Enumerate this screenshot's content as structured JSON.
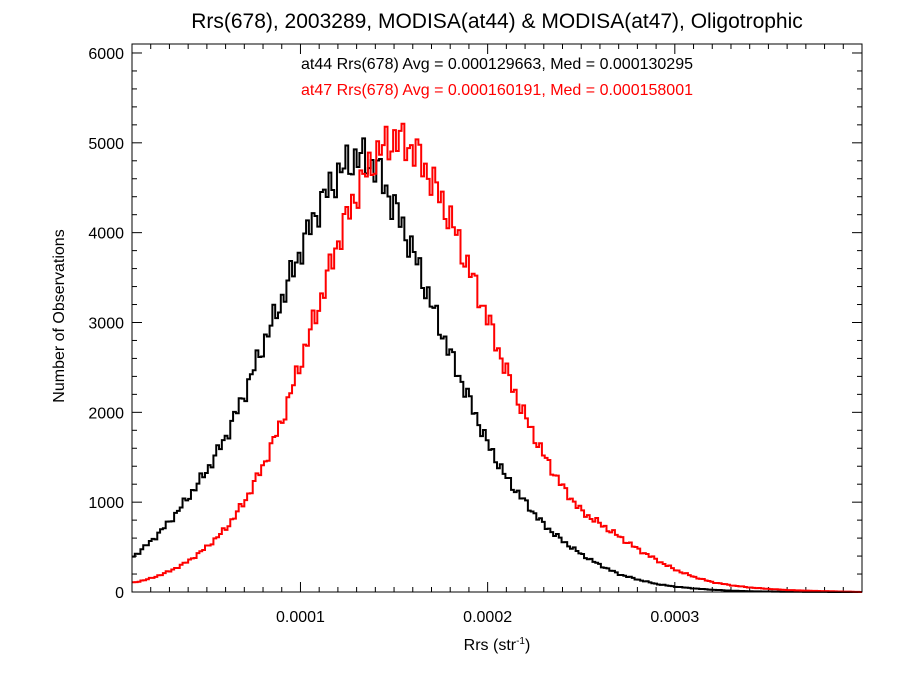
{
  "chart_data": {
    "type": "histogram-step",
    "title": "Rrs(678), 2003289, MODISA(at44) & MODISA(at47), Oligotrophic",
    "xlabel_main": "Rrs (str",
    "xlabel_sup": "-1",
    "xlabel_tail": ")",
    "ylabel": "Number of Observations",
    "xlim": [
      1e-05,
      0.0004
    ],
    "ylim": [
      0,
      6100
    ],
    "x_ticks": [
      {
        "value": 0.0001,
        "label": "0.0001"
      },
      {
        "value": 0.0002,
        "label": "0.0002"
      },
      {
        "value": 0.0003,
        "label": "0.0003"
      }
    ],
    "x_minor_step": 1e-05,
    "y_ticks": [
      {
        "value": 0,
        "label": "0"
      },
      {
        "value": 1000,
        "label": "1000"
      },
      {
        "value": 2000,
        "label": "2000"
      },
      {
        "value": 3000,
        "label": "3000"
      },
      {
        "value": 4000,
        "label": "4000"
      },
      {
        "value": 5000,
        "label": "5000"
      },
      {
        "value": 6000,
        "label": "6000"
      }
    ],
    "y_minor_step": 200,
    "bin_width": 1.5e-06,
    "annotations": [
      {
        "text": "at44 Rrs(678) Avg = 0.000129663, Med = 0.000130295",
        "color": "#000000"
      },
      {
        "text": "at47 Rrs(678) Avg = 0.000160191, Med = 0.000158001",
        "color": "#ff0000"
      }
    ],
    "series": [
      {
        "color": "#000000",
        "x": [
          1e-05,
          2e-05,
          3e-05,
          4e-05,
          5e-05,
          6e-05,
          7e-05,
          8e-05,
          9e-05,
          0.0001,
          0.00011,
          0.00012,
          0.00013,
          0.00014,
          0.00015,
          0.00016,
          0.00017,
          0.00018,
          0.00019,
          0.0002,
          0.00021,
          0.00022,
          0.00023,
          0.00024,
          0.00025,
          0.00026,
          0.00027,
          0.00028,
          0.00029,
          0.0003,
          0.00031,
          0.00032,
          0.00033,
          0.00034,
          0.00035,
          0.00036,
          0.00037,
          0.00038,
          0.00039,
          0.0004
        ],
        "y": [
          380,
          560,
          780,
          1050,
          1350,
          1720,
          2200,
          2750,
          3250,
          3800,
          4300,
          4650,
          4850,
          4750,
          4300,
          3800,
          3200,
          2650,
          2150,
          1650,
          1270,
          1000,
          750,
          570,
          420,
          300,
          200,
          140,
          90,
          60,
          40,
          25,
          15,
          8,
          5,
          3,
          2,
          1,
          0,
          0
        ]
      },
      {
        "color": "#ff0000",
        "x": [
          1e-05,
          2e-05,
          3e-05,
          4e-05,
          5e-05,
          6e-05,
          7e-05,
          8e-05,
          9e-05,
          0.0001,
          0.00011,
          0.00012,
          0.00013,
          0.00014,
          0.00015,
          0.00016,
          0.00017,
          0.00018,
          0.00019,
          0.0002,
          0.00021,
          0.00022,
          0.00023,
          0.00024,
          0.00025,
          0.00026,
          0.00027,
          0.00028,
          0.00029,
          0.0003,
          0.00031,
          0.00032,
          0.00033,
          0.00034,
          0.00035,
          0.00036,
          0.00037,
          0.00038,
          0.00039,
          0.0004
        ],
        "y": [
          100,
          150,
          230,
          340,
          500,
          700,
          1000,
          1400,
          1900,
          2550,
          3200,
          3900,
          4450,
          4850,
          5050,
          4950,
          4600,
          4150,
          3600,
          3050,
          2450,
          1950,
          1520,
          1170,
          900,
          760,
          620,
          480,
          360,
          250,
          170,
          110,
          75,
          50,
          35,
          22,
          15,
          10,
          5,
          0
        ]
      }
    ]
  }
}
